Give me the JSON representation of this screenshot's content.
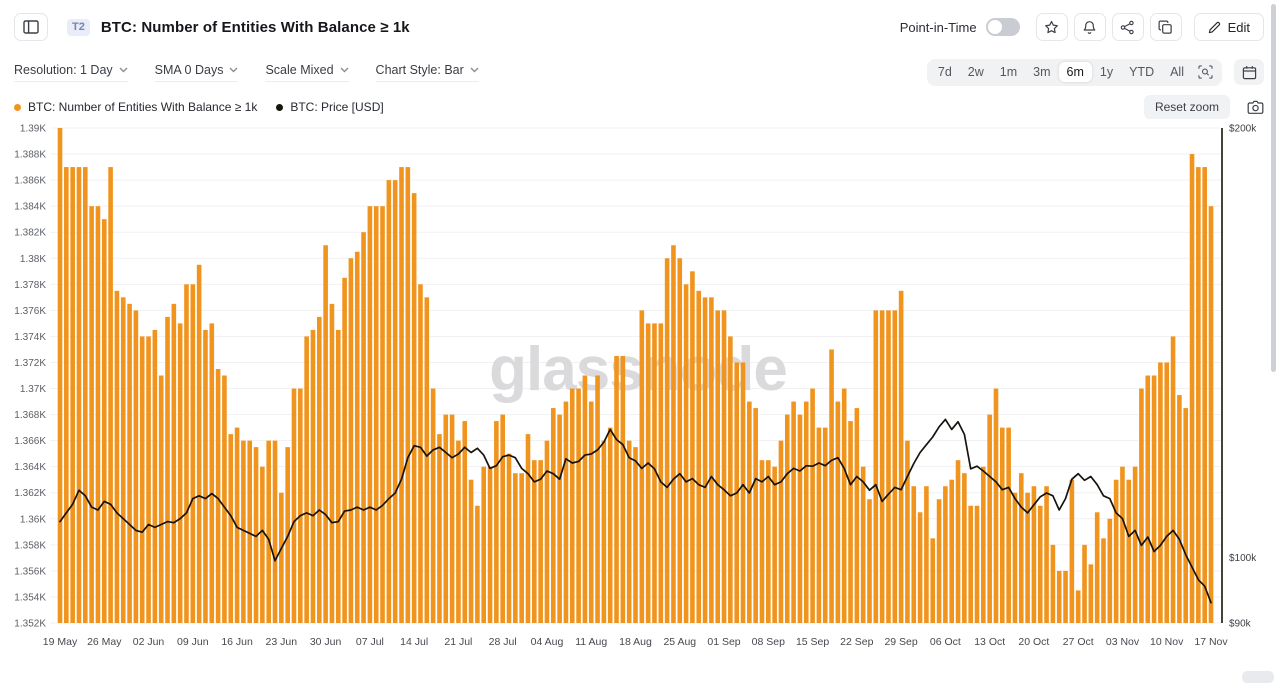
{
  "header": {
    "title": "BTC: Number of Entities With Balance ≥ 1k",
    "badge": "T2",
    "point_in_time_label": "Point-in-Time",
    "point_in_time_enabled": false,
    "edit_label": "Edit"
  },
  "toolbar": {
    "dropdowns": [
      {
        "label": "Resolution: 1 Day"
      },
      {
        "label": "SMA 0 Days"
      },
      {
        "label": "Scale Mixed"
      },
      {
        "label": "Chart Style: Bar"
      }
    ],
    "ranges": [
      "7d",
      "2w",
      "1m",
      "3m",
      "6m",
      "1y",
      "YTD",
      "All"
    ],
    "active_range": "6m"
  },
  "legend": [
    {
      "label": "BTC: Number of Entities With Balance ≥ 1k",
      "color": "#F0941E"
    },
    {
      "label": "BTC: Price [USD]",
      "color": "#17140D"
    }
  ],
  "actions": {
    "reset_zoom_label": "Reset zoom"
  },
  "chart_data": {
    "type": "mixed",
    "title": "BTC: Number of Entities With Balance ≥ 1k vs BTC Price",
    "watermark": "glassnode",
    "grid": true,
    "x_start_date": "19 May",
    "x_end_date": "17 Nov",
    "days_per_tick": 7,
    "x_tick_labels": [
      "19 May",
      "26 May",
      "02 Jun",
      "09 Jun",
      "16 Jun",
      "23 Jun",
      "30 Jun",
      "07 Jul",
      "14 Jul",
      "21 Jul",
      "28 Jul",
      "04 Aug",
      "11 Aug",
      "18 Aug",
      "25 Aug",
      "01 Sep",
      "08 Sep",
      "15 Sep",
      "22 Sep",
      "29 Sep",
      "06 Oct",
      "13 Oct",
      "20 Oct",
      "27 Oct",
      "03 Nov",
      "10 Nov",
      "17 Nov"
    ],
    "left_axis": {
      "series": "entities_with_balance_gte_1k",
      "min": 1352,
      "max": 1390,
      "tick_step": 2,
      "unit": "K",
      "scale": "linear"
    },
    "right_axis": {
      "series": "btc_price_usd",
      "scale": "log",
      "top_k": 200,
      "bottom_k": 90,
      "ticks_k": [
        200,
        100,
        90
      ],
      "tick_labels": [
        "$200k",
        "$100k",
        "$90k"
      ]
    },
    "series": [
      {
        "name": "BTC: Number of Entities With Balance ≥ 1k",
        "type": "bar",
        "axis": "left",
        "color": "#F0941E",
        "unit": "entities (axis shows K)",
        "values": [
          1390,
          1387,
          1387,
          1387,
          1387,
          1384,
          1384,
          1383,
          1387,
          1377.5,
          1377,
          1376.5,
          1376,
          1374,
          1374,
          1374.5,
          1371,
          1375.5,
          1376.5,
          1375,
          1378,
          1378,
          1379.5,
          1374.5,
          1375,
          1371.5,
          1371,
          1366.5,
          1367,
          1366,
          1366,
          1365.5,
          1364,
          1366,
          1366,
          1362,
          1365.5,
          1370,
          1370,
          1374,
          1374.5,
          1375.5,
          1381,
          1376.5,
          1374.5,
          1378.5,
          1380,
          1380.5,
          1382,
          1384,
          1384,
          1384,
          1386,
          1386,
          1387,
          1387,
          1385,
          1378,
          1377,
          1370,
          1366.5,
          1368,
          1368,
          1366,
          1367.5,
          1363,
          1361,
          1364,
          1364,
          1367.5,
          1368,
          1365,
          1363.5,
          1363.5,
          1366.5,
          1364.5,
          1364.5,
          1366,
          1368.5,
          1368,
          1369,
          1370,
          1370,
          1371,
          1369,
          1371,
          1366,
          1367,
          1372.5,
          1372.5,
          1366,
          1365.5,
          1376,
          1375,
          1375,
          1375,
          1380,
          1381,
          1380,
          1378,
          1379,
          1377.5,
          1377,
          1377,
          1376,
          1376,
          1374,
          1372,
          1372,
          1369,
          1368.5,
          1364.5,
          1364.5,
          1364,
          1366,
          1368,
          1369,
          1368,
          1369,
          1370,
          1367,
          1367,
          1373,
          1369,
          1370,
          1367.5,
          1368.5,
          1364,
          1361.5,
          1376,
          1376,
          1376,
          1376,
          1377.5,
          1366,
          1362.5,
          1360.5,
          1362.5,
          1358.5,
          1361.5,
          1362.5,
          1363,
          1364.5,
          1363.5,
          1361,
          1361,
          1364,
          1368,
          1370,
          1367,
          1367,
          1362,
          1363.5,
          1362,
          1362.5,
          1361,
          1362.5,
          1358,
          1356,
          1356,
          1363,
          1354.5,
          1358,
          1356.5,
          1360.5,
          1358.5,
          1360,
          1363,
          1364,
          1363,
          1364,
          1370,
          1371,
          1371,
          1372,
          1372,
          1374,
          1369.5,
          1368.5,
          1388,
          1387,
          1387,
          1384
        ]
      },
      {
        "name": "BTC: Price [USD]",
        "type": "line",
        "axis": "right",
        "color": "#17140D",
        "unit": "USD thousands",
        "values": [
          106,
          107.5,
          109,
          111.5,
          110.5,
          108.5,
          108,
          109.5,
          109,
          107.5,
          106.5,
          105.5,
          104.5,
          104.2,
          105.5,
          105,
          105.5,
          106,
          105.8,
          106.5,
          107.5,
          110,
          110.5,
          110,
          110.9,
          110,
          108.5,
          107,
          105,
          104.5,
          104,
          103.5,
          104.5,
          103,
          99.5,
          101.5,
          103.5,
          106,
          107,
          107.5,
          107,
          108,
          107.2,
          105.8,
          106,
          107.8,
          108,
          108.5,
          108,
          108.5,
          108,
          108.8,
          110,
          111,
          113.5,
          117.5,
          119.8,
          119.5,
          117.8,
          119,
          119.5,
          118.5,
          117.5,
          118.2,
          119.5,
          118.5,
          119.3,
          118,
          115.5,
          116,
          117.7,
          118,
          117.5,
          115.5,
          114.5,
          113,
          113.5,
          115,
          114.5,
          113.5,
          117.3,
          116.5,
          116.8,
          118,
          118.2,
          119,
          120.5,
          123,
          121,
          120,
          117.5,
          116.9,
          115.5,
          116.5,
          115.4,
          113,
          112,
          113.5,
          114.5,
          113,
          113.6,
          112.5,
          112,
          114,
          112.5,
          111.6,
          110.5,
          111,
          112.5,
          111,
          113.6,
          113,
          114,
          112.5,
          113,
          114.5,
          115.5,
          115,
          116,
          115.9,
          116.5,
          116,
          117,
          117.5,
          115.5,
          112.5,
          114,
          113,
          111.5,
          112.5,
          109.5,
          110.8,
          112,
          111.6,
          114,
          116.4,
          118.5,
          120,
          121.5,
          123.5,
          125,
          123,
          124.5,
          122,
          115.4,
          115.9,
          115,
          114,
          113,
          111.6,
          112,
          110,
          108.5,
          107.5,
          108.9,
          110.3,
          111,
          110.5,
          108,
          110,
          113.5,
          114.5,
          113.3,
          114,
          112.5,
          110.5,
          110,
          107.5,
          106.5,
          103.5,
          104.5,
          102,
          103.4,
          101,
          102,
          103.5,
          104.5,
          103,
          100.5,
          98.5,
          96.5,
          95.5,
          93
        ]
      }
    ]
  }
}
